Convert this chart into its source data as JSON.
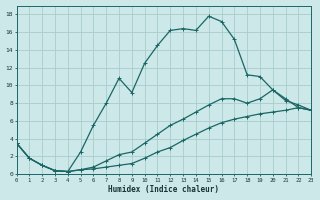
{
  "xlabel": "Humidex (Indice chaleur)",
  "bg_color": "#cce8e8",
  "grid_color": "#aacccc",
  "line_color": "#1a6666",
  "xlim": [
    0,
    23
  ],
  "ylim": [
    0,
    19
  ],
  "xticks": [
    0,
    1,
    2,
    3,
    4,
    5,
    6,
    7,
    8,
    9,
    10,
    11,
    12,
    13,
    14,
    15,
    16,
    17,
    18,
    19,
    20,
    21,
    22,
    23
  ],
  "yticks": [
    0,
    2,
    4,
    6,
    8,
    10,
    12,
    14,
    16,
    18
  ],
  "line1_x": [
    0,
    1,
    2,
    3,
    4,
    5,
    6,
    7,
    8,
    9,
    10,
    11,
    12,
    13,
    14,
    15,
    16,
    17,
    18,
    19,
    20,
    21,
    22,
    23
  ],
  "line1_y": [
    3.5,
    1.8,
    1.0,
    0.4,
    0.3,
    2.5,
    5.5,
    8.0,
    10.8,
    9.2,
    12.5,
    14.5,
    16.2,
    16.4,
    16.2,
    17.8,
    17.2,
    15.2,
    11.2,
    11.0,
    9.5,
    8.3,
    7.8,
    7.2
  ],
  "line2_x": [
    0,
    1,
    2,
    3,
    4,
    5,
    6,
    7,
    8,
    9,
    10,
    11,
    12,
    13,
    14,
    15,
    16,
    17,
    18,
    19,
    20,
    21,
    22,
    23
  ],
  "line2_y": [
    3.5,
    1.8,
    1.0,
    0.4,
    0.3,
    0.5,
    0.8,
    1.5,
    2.2,
    2.5,
    3.5,
    4.5,
    5.5,
    6.2,
    7.0,
    7.8,
    8.5,
    8.5,
    8.0,
    8.5,
    9.5,
    8.5,
    7.5,
    7.2
  ],
  "line3_x": [
    0,
    1,
    2,
    3,
    4,
    5,
    6,
    7,
    8,
    9,
    10,
    11,
    12,
    13,
    14,
    15,
    16,
    17,
    18,
    19,
    20,
    21,
    22,
    23
  ],
  "line3_y": [
    3.5,
    1.8,
    1.0,
    0.4,
    0.3,
    0.5,
    0.6,
    0.8,
    1.0,
    1.2,
    1.8,
    2.5,
    3.0,
    3.8,
    4.5,
    5.2,
    5.8,
    6.2,
    6.5,
    6.8,
    7.0,
    7.2,
    7.5,
    7.2
  ]
}
